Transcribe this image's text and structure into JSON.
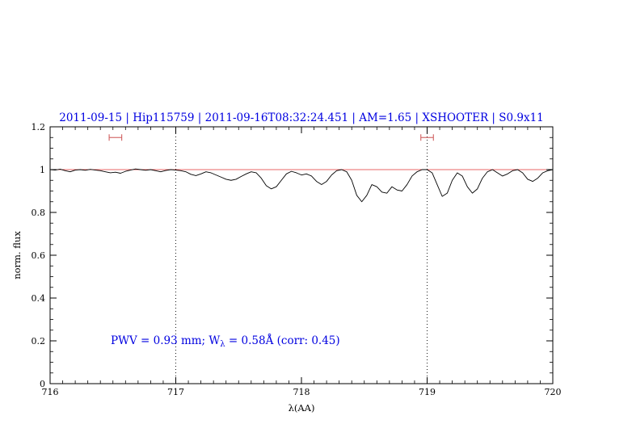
{
  "header": {
    "title": "2011-09-15 | Hip115759 | 2011-09-16T08:32:24.451 | AM=1.65 | XSHOOTER | S0.9x11"
  },
  "annotation": {
    "pre": "PWV = 0.93 mm; W",
    "sub": "λ",
    "post": " = 0.58Å (corr: 0.45)"
  },
  "colors": {
    "title": "#0000e0",
    "annotation": "#0000e0",
    "continuum": "#e03030",
    "interval_marker": "#d06060",
    "spectrum": "#000000",
    "frame": "#000000"
  },
  "chart_data": {
    "type": "line",
    "title": "2011-09-15 | Hip115759 | 2011-09-16T08:32:24.451 | AM=1.65 | XSHOOTER | S0.9x11",
    "xlabel": "λ(AA)",
    "ylabel": "norm. flux",
    "xlim": [
      716,
      720
    ],
    "ylim": [
      0,
      1.2
    ],
    "grid": false,
    "legend": "none",
    "x_ticks": [
      716,
      717,
      718,
      719,
      720
    ],
    "x_tick_labels": [
      "716",
      "717",
      "718",
      "719",
      "720"
    ],
    "y_ticks": [
      0,
      0.2,
      0.4,
      0.6,
      0.8,
      1,
      1.2
    ],
    "y_tick_labels": [
      "0",
      "0.2",
      "0.4",
      "0.6",
      "0.8",
      "1",
      "1.2"
    ],
    "x_minor_step": 0.1,
    "y_minor_step": 0.05,
    "dotted_vlines": [
      717,
      719
    ],
    "continuum_y": 1.0,
    "interval_markers": [
      {
        "x1": 716.47,
        "x2": 716.57,
        "y": 1.15
      },
      {
        "x1": 718.95,
        "x2": 719.05,
        "y": 1.15
      }
    ],
    "series": [
      {
        "name": "normalized-spectrum",
        "x_start": 716.0,
        "x_step": 0.04,
        "y": [
          1.0,
          0.998,
          1.002,
          0.995,
          0.99,
          0.998,
          1.0,
          0.997,
          1.001,
          0.998,
          0.995,
          0.99,
          0.985,
          0.988,
          0.983,
          0.992,
          0.998,
          1.003,
          1.0,
          0.997,
          1.0,
          0.995,
          0.99,
          0.996,
          1.0,
          0.998,
          0.995,
          0.99,
          0.978,
          0.972,
          0.98,
          0.99,
          0.985,
          0.975,
          0.965,
          0.955,
          0.95,
          0.955,
          0.968,
          0.98,
          0.99,
          0.985,
          0.96,
          0.925,
          0.91,
          0.92,
          0.95,
          0.98,
          0.992,
          0.985,
          0.975,
          0.98,
          0.97,
          0.945,
          0.93,
          0.945,
          0.975,
          0.995,
          1.0,
          0.99,
          0.95,
          0.88,
          0.85,
          0.88,
          0.93,
          0.92,
          0.895,
          0.89,
          0.92,
          0.905,
          0.9,
          0.93,
          0.97,
          0.99,
          1.0,
          1.0,
          0.985,
          0.93,
          0.875,
          0.89,
          0.95,
          0.985,
          0.97,
          0.92,
          0.89,
          0.91,
          0.96,
          0.99,
          1.0,
          0.985,
          0.97,
          0.98,
          0.995,
          1.0,
          0.985,
          0.955,
          0.945,
          0.96,
          0.985,
          0.995,
          1.0
        ]
      }
    ]
  }
}
